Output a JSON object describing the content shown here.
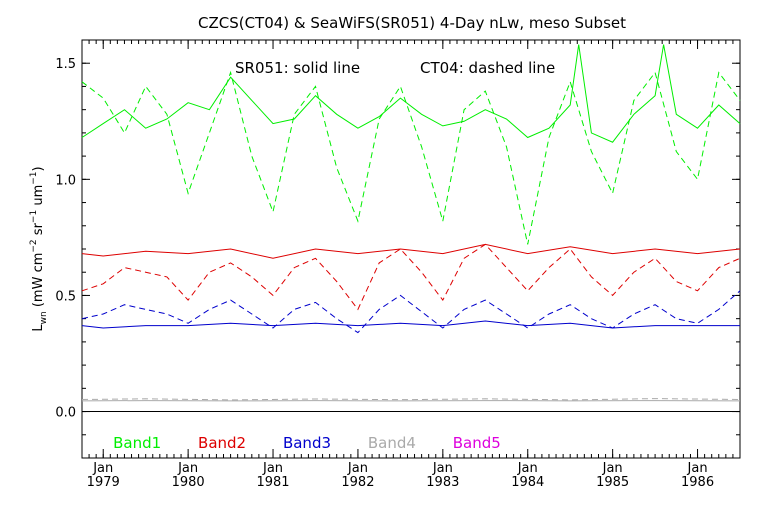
{
  "chart_data": {
    "type": "line",
    "title": "CZCS(CT04) & SeaWiFS(SR051) 4-Day nLw, meso Subset",
    "ylabel": "L_wn (mW cm^-2 sr^-1 um^-1)",
    "annotation_left": "SR051: solid line",
    "annotation_right": "CT04: dashed line",
    "xlim": [
      1978.75,
      1986.5
    ],
    "ylim": [
      -0.2,
      1.6
    ],
    "x_ticks": [
      {
        "value": 1979,
        "label_month": "Jan",
        "label_year": "1979"
      },
      {
        "value": 1980,
        "label_month": "Jan",
        "label_year": "1980"
      },
      {
        "value": 1981,
        "label_month": "Jan",
        "label_year": "1981"
      },
      {
        "value": 1982,
        "label_month": "Jan",
        "label_year": "1982"
      },
      {
        "value": 1983,
        "label_month": "Jan",
        "label_year": "1983"
      },
      {
        "value": 1984,
        "label_month": "Jan",
        "label_year": "1984"
      },
      {
        "value": 1985,
        "label_month": "Jan",
        "label_year": "1985"
      },
      {
        "value": 1986,
        "label_month": "Jan",
        "label_year": "1986"
      }
    ],
    "y_ticks": [
      {
        "value": 0.0,
        "label": "0.0"
      },
      {
        "value": 0.5,
        "label": "0.5"
      },
      {
        "value": 1.0,
        "label": "1.0"
      },
      {
        "value": 1.5,
        "label": "1.5"
      }
    ],
    "zero_line": 0.0,
    "grid": false,
    "legend": [
      {
        "label": "Band1",
        "color": "#00ee00",
        "x": 1979.4
      },
      {
        "label": "Band2",
        "color": "#dd0000",
        "x": 1980.4
      },
      {
        "label": "Band3",
        "color": "#0000cc",
        "x": 1981.4
      },
      {
        "label": "Band4",
        "color": "#aaaaaa",
        "x": 1982.4
      },
      {
        "label": "Band5",
        "color": "#dd00dd",
        "x": 1983.4
      }
    ],
    "legend_placement": "bottom",
    "series": [
      {
        "band": "Band1",
        "style": "solid",
        "color": "#00ee00",
        "x": [
          1978.75,
          1979.0,
          1979.25,
          1979.5,
          1979.75,
          1980.0,
          1980.25,
          1980.5,
          1980.75,
          1981.0,
          1981.25,
          1981.5,
          1981.75,
          1982.0,
          1982.25,
          1982.5,
          1982.75,
          1983.0,
          1983.25,
          1983.5,
          1983.75,
          1984.0,
          1984.25,
          1984.5,
          1984.6,
          1984.75,
          1985.0,
          1985.25,
          1985.5,
          1985.6,
          1985.75,
          1986.0,
          1986.25,
          1986.5
        ],
        "values": [
          1.18,
          1.24,
          1.3,
          1.22,
          1.26,
          1.33,
          1.3,
          1.44,
          1.34,
          1.24,
          1.26,
          1.36,
          1.28,
          1.22,
          1.27,
          1.35,
          1.28,
          1.23,
          1.25,
          1.3,
          1.26,
          1.18,
          1.22,
          1.32,
          1.58,
          1.2,
          1.16,
          1.28,
          1.36,
          1.58,
          1.28,
          1.22,
          1.32,
          1.24
        ]
      },
      {
        "band": "Band1",
        "style": "dashed",
        "color": "#00ee00",
        "x": [
          1978.75,
          1979.0,
          1979.25,
          1979.5,
          1979.75,
          1980.0,
          1980.25,
          1980.5,
          1980.75,
          1981.0,
          1981.25,
          1981.5,
          1981.75,
          1982.0,
          1982.25,
          1982.5,
          1982.75,
          1983.0,
          1983.25,
          1983.5,
          1983.75,
          1984.0,
          1984.25,
          1984.5,
          1984.75,
          1985.0,
          1985.25,
          1985.5,
          1985.75,
          1986.0,
          1986.25,
          1986.5
        ],
        "values": [
          1.42,
          1.35,
          1.2,
          1.4,
          1.28,
          0.94,
          1.2,
          1.46,
          1.1,
          0.86,
          1.28,
          1.4,
          1.05,
          0.82,
          1.26,
          1.4,
          1.14,
          0.82,
          1.3,
          1.38,
          1.14,
          0.72,
          1.18,
          1.42,
          1.12,
          0.94,
          1.34,
          1.46,
          1.12,
          1.0,
          1.46,
          1.34
        ]
      },
      {
        "band": "Band2",
        "style": "solid",
        "color": "#dd0000",
        "x": [
          1978.75,
          1979.0,
          1979.5,
          1980.0,
          1980.5,
          1981.0,
          1981.5,
          1982.0,
          1982.5,
          1983.0,
          1983.5,
          1984.0,
          1984.5,
          1985.0,
          1985.5,
          1986.0,
          1986.5
        ],
        "values": [
          0.68,
          0.67,
          0.69,
          0.68,
          0.7,
          0.66,
          0.7,
          0.68,
          0.7,
          0.68,
          0.72,
          0.68,
          0.71,
          0.68,
          0.7,
          0.68,
          0.7
        ]
      },
      {
        "band": "Band2",
        "style": "dashed",
        "color": "#dd0000",
        "x": [
          1978.75,
          1979.0,
          1979.25,
          1979.5,
          1979.75,
          1980.0,
          1980.25,
          1980.5,
          1980.75,
          1981.0,
          1981.25,
          1981.5,
          1981.75,
          1982.0,
          1982.25,
          1982.5,
          1982.75,
          1983.0,
          1983.25,
          1983.5,
          1983.75,
          1984.0,
          1984.25,
          1984.5,
          1984.75,
          1985.0,
          1985.25,
          1985.5,
          1985.75,
          1986.0,
          1986.25,
          1986.5
        ],
        "values": [
          0.52,
          0.55,
          0.62,
          0.6,
          0.58,
          0.48,
          0.6,
          0.64,
          0.58,
          0.5,
          0.62,
          0.66,
          0.56,
          0.44,
          0.64,
          0.7,
          0.6,
          0.48,
          0.66,
          0.72,
          0.62,
          0.52,
          0.62,
          0.7,
          0.58,
          0.5,
          0.6,
          0.66,
          0.56,
          0.52,
          0.62,
          0.66
        ]
      },
      {
        "band": "Band3",
        "style": "solid",
        "color": "#0000cc",
        "x": [
          1978.75,
          1979.0,
          1979.5,
          1980.0,
          1980.5,
          1981.0,
          1981.5,
          1982.0,
          1982.5,
          1983.0,
          1983.5,
          1984.0,
          1984.5,
          1985.0,
          1985.5,
          1986.0,
          1986.5
        ],
        "values": [
          0.37,
          0.36,
          0.37,
          0.37,
          0.38,
          0.37,
          0.38,
          0.37,
          0.38,
          0.37,
          0.39,
          0.37,
          0.38,
          0.36,
          0.37,
          0.37,
          0.37
        ]
      },
      {
        "band": "Band3",
        "style": "dashed",
        "color": "#0000cc",
        "x": [
          1978.75,
          1979.0,
          1979.25,
          1979.5,
          1979.75,
          1980.0,
          1980.25,
          1980.5,
          1980.75,
          1981.0,
          1981.25,
          1981.5,
          1981.75,
          1982.0,
          1982.25,
          1982.5,
          1982.75,
          1983.0,
          1983.25,
          1983.5,
          1983.75,
          1984.0,
          1984.25,
          1984.5,
          1984.75,
          1985.0,
          1985.25,
          1985.5,
          1985.75,
          1986.0,
          1986.25,
          1986.5
        ],
        "values": [
          0.4,
          0.42,
          0.46,
          0.44,
          0.42,
          0.38,
          0.44,
          0.48,
          0.42,
          0.36,
          0.44,
          0.47,
          0.4,
          0.34,
          0.44,
          0.5,
          0.43,
          0.36,
          0.44,
          0.48,
          0.42,
          0.36,
          0.42,
          0.46,
          0.4,
          0.36,
          0.42,
          0.46,
          0.4,
          0.38,
          0.44,
          0.52
        ]
      },
      {
        "band": "Band4",
        "style": "solid",
        "color": "#aaaaaa",
        "x": [
          1978.75,
          1979.5,
          1980.5,
          1981.5,
          1982.5,
          1983.5,
          1984.5,
          1985.5,
          1986.5
        ],
        "values": [
          0.046,
          0.047,
          0.046,
          0.047,
          0.046,
          0.047,
          0.046,
          0.047,
          0.046
        ]
      },
      {
        "band": "Band4",
        "style": "dashed",
        "color": "#aaaaaa",
        "x": [
          1978.75,
          1979.5,
          1980.5,
          1981.5,
          1982.5,
          1983.5,
          1984.5,
          1985.5,
          1986.5
        ],
        "values": [
          0.052,
          0.055,
          0.05,
          0.054,
          0.051,
          0.055,
          0.05,
          0.056,
          0.052
        ]
      }
    ]
  }
}
